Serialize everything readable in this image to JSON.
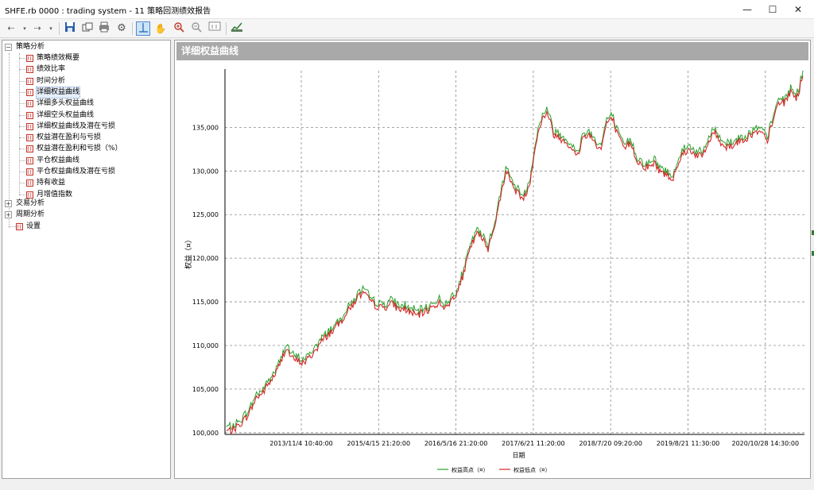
{
  "window": {
    "title": "SHFE.rb 0000 : trading system - 11 策略回测绩效报告",
    "minimize": "—",
    "maximize": "☐",
    "close": "✕"
  },
  "toolbar": {
    "icons": [
      "back-arrow-icon",
      "dropdown-icon",
      "forward-arrow-icon",
      "dropdown-icon",
      "save-icon",
      "copy-icon",
      "print-icon",
      "settings-icon",
      "crosshair-icon",
      "hand-icon",
      "zoom-in-icon",
      "zoom-out-icon",
      "fit-icon",
      "chart-icon"
    ]
  },
  "tree": {
    "groups": [
      {
        "label": "策略分析",
        "expanded": true
      },
      {
        "label": "交易分析",
        "expanded": false
      },
      {
        "label": "周期分析",
        "expanded": false
      }
    ],
    "items": [
      {
        "label": "策略绩效概要"
      },
      {
        "label": "绩效比率"
      },
      {
        "label": "时间分析"
      },
      {
        "label": "详细权益曲线",
        "selected": true
      },
      {
        "label": "详细多头权益曲线"
      },
      {
        "label": "详细空头权益曲线"
      },
      {
        "label": "详细权益曲线及潜在亏损"
      },
      {
        "label": "权益潜在盈利与亏损"
      },
      {
        "label": "权益潜在盈利和亏损（%）"
      },
      {
        "label": "平仓权益曲线"
      },
      {
        "label": "平仓权益曲线及潜在亏损"
      },
      {
        "label": "持有收益"
      },
      {
        "label": "月增值指数"
      }
    ],
    "settings_label": "设置"
  },
  "panel": {
    "header": "详细权益曲线"
  },
  "chart_data": {
    "type": "line",
    "title": "",
    "xlabel": "日期",
    "ylabel": "权益（¤）",
    "x_ticks": [
      "2013/11/4 10:40:00",
      "2015/4/15 21:20:00",
      "2016/5/16 21:20:00",
      "2017/6/21 11:20:00",
      "2018/7/20 09:20:00",
      "2019/8/21 11:30:00",
      "2020/10/28 14:30:00"
    ],
    "y_ticks": [
      100000,
      105000,
      110000,
      115000,
      120000,
      125000,
      130000,
      135000
    ],
    "y_tick_labels": [
      "100,000",
      "105,000",
      "110,000",
      "115,000",
      "120,000",
      "125,000",
      "130,000",
      "135,000"
    ],
    "ylim": [
      99800,
      141500
    ],
    "grid": true,
    "legend_position": "bottom",
    "series": [
      {
        "name": "权益高点（¤）",
        "color": "#2ca02c"
      },
      {
        "name": "权益低点（¤）",
        "color": "#d62728"
      }
    ],
    "values": [
      100200,
      100300,
      100800,
      101500,
      102500,
      104000,
      104500,
      105500,
      106500,
      107800,
      109800,
      108500,
      108200,
      108000,
      108600,
      109500,
      110400,
      111200,
      111800,
      112500,
      113600,
      114400,
      115500,
      116000,
      115200,
      114600,
      114300,
      114500,
      114800,
      114100,
      114200,
      113800,
      113400,
      113700,
      114100,
      114600,
      114900,
      114200,
      115400,
      116300,
      118500,
      121000,
      122800,
      122300,
      121100,
      123500,
      126500,
      130200,
      128500,
      127500,
      126800,
      128500,
      133000,
      135800,
      136800,
      134300,
      133800,
      133500,
      132700,
      131500,
      133900,
      134200,
      133300,
      132400,
      135600,
      135900,
      133700,
      132500,
      133300,
      131300,
      130600,
      130400,
      130900,
      129900,
      129600,
      129000,
      131000,
      132200,
      132400,
      131900,
      131600,
      133000,
      134600,
      133400,
      132800,
      132900,
      133300,
      133600,
      134000,
      134400,
      134300,
      133500,
      135800,
      138000,
      137800,
      139200,
      138300,
      141000
    ]
  }
}
